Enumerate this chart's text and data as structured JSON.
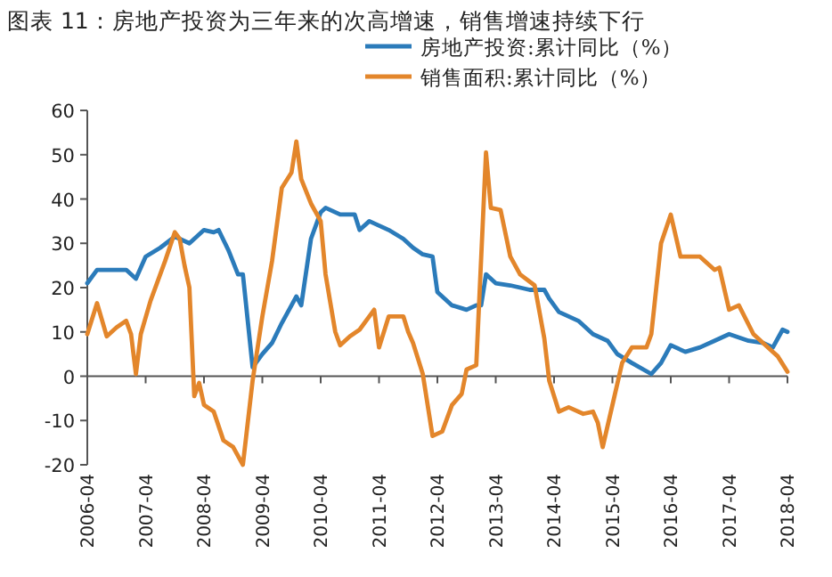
{
  "chart_data": {
    "type": "line",
    "title": "图表 11：房地产投资为三年来的次高增速，销售增速持续下行",
    "xlim": [
      "2006-04",
      "2018-04"
    ],
    "ylim": [
      -20,
      60
    ],
    "yticks": [
      -20,
      -10,
      0,
      10,
      20,
      30,
      40,
      50,
      60
    ],
    "xticks": [
      {
        "value": "2006-04",
        "label": "2006-04"
      },
      {
        "value": "2007-04",
        "label": "2007-04"
      },
      {
        "value": "2008-04",
        "label": "2008-04"
      },
      {
        "value": "2009-04",
        "label": "2009-04"
      },
      {
        "value": "2010-04",
        "label": "2010-04"
      },
      {
        "value": "2011-04",
        "label": "2011-04"
      },
      {
        "value": "2012-04",
        "label": "2012-04"
      },
      {
        "value": "2013-04",
        "label": "2013-04"
      },
      {
        "value": "2014-04",
        "label": "2014-04"
      },
      {
        "value": "2015-04",
        "label": "2015-04"
      },
      {
        "value": "2016-04",
        "label": "2016-04"
      },
      {
        "value": "2017-04",
        "label": "2017-04"
      },
      {
        "value": "2018-04",
        "label": "2018-04"
      }
    ],
    "legend": "top right",
    "marker": "none",
    "line_style": "solid",
    "series": [
      {
        "name": "房地产投资:累计同比（%）",
        "color": "#2b7bba",
        "x": [
          "2006-04",
          "2006-06",
          "2006-09",
          "2006-12",
          "2007-02",
          "2007-04",
          "2007-07",
          "2007-10",
          "2008-01",
          "2008-04",
          "2008-06",
          "2008-07",
          "2008-09",
          "2008-11",
          "2008-12",
          "2009-02",
          "2009-04",
          "2009-06",
          "2009-08",
          "2009-10",
          "2009-11",
          "2009-12",
          "2010-02",
          "2010-04",
          "2010-05",
          "2010-08",
          "2010-11",
          "2010-12",
          "2011-02",
          "2011-04",
          "2011-06",
          "2011-09",
          "2011-11",
          "2012-01",
          "2012-03",
          "2012-04",
          "2012-07",
          "2012-10",
          "2012-12",
          "2013-01",
          "2013-02",
          "2013-04",
          "2013-07",
          "2013-11",
          "2014-02",
          "2014-03",
          "2014-05",
          "2014-09",
          "2014-12",
          "2015-03",
          "2015-05",
          "2015-08",
          "2015-12",
          "2016-02",
          "2016-04",
          "2016-07",
          "2016-10",
          "2017-01",
          "2017-04",
          "2017-08",
          "2017-11",
          "2018-01",
          "2018-03",
          "2018-04"
        ],
        "values": [
          21,
          24,
          24,
          24,
          22,
          27,
          29,
          31.5,
          30,
          33,
          32.5,
          33,
          28.5,
          23,
          23,
          2,
          5,
          7.5,
          12,
          16,
          18,
          16,
          31,
          37,
          38,
          36.5,
          36.5,
          33,
          35,
          34,
          33,
          31,
          29,
          27.5,
          27,
          19,
          16,
          15,
          16,
          16,
          23,
          21,
          20.5,
          19.5,
          19.5,
          17.5,
          14.5,
          12.5,
          9.5,
          8,
          5,
          3,
          0.5,
          3,
          7,
          5.5,
          6.5,
          8,
          9.5,
          8,
          7.5,
          6.5,
          10.5,
          10
        ]
      },
      {
        "name": "销售面积:累计同比（%）",
        "color": "#e3862b",
        "x": [
          "2006-04",
          "2006-06",
          "2006-08",
          "2006-10",
          "2006-12",
          "2007-01",
          "2007-02",
          "2007-03",
          "2007-05",
          "2007-08",
          "2007-10",
          "2007-11",
          "2007-12",
          "2008-01",
          "2008-02",
          "2008-03",
          "2008-04",
          "2008-06",
          "2008-08",
          "2008-10",
          "2008-12",
          "2009-02",
          "2009-04",
          "2009-06",
          "2009-08",
          "2009-10",
          "2009-11",
          "2009-12",
          "2010-02",
          "2010-04",
          "2010-05",
          "2010-07",
          "2010-08",
          "2010-10",
          "2010-12",
          "2011-03",
          "2011-04",
          "2011-06",
          "2011-09",
          "2011-10",
          "2011-11",
          "2012-01",
          "2012-03",
          "2012-05",
          "2012-07",
          "2012-09",
          "2012-10",
          "2012-12",
          "2013-02",
          "2013-03",
          "2013-05",
          "2013-07",
          "2013-09",
          "2013-12",
          "2014-02",
          "2014-03",
          "2014-05",
          "2014-07",
          "2014-10",
          "2014-12",
          "2015-01",
          "2015-02",
          "2015-04",
          "2015-06",
          "2015-08",
          "2015-11",
          "2015-12",
          "2016-02",
          "2016-04",
          "2016-06",
          "2016-10",
          "2017-01",
          "2017-02",
          "2017-04",
          "2017-06",
          "2017-09",
          "2017-12",
          "2018-02",
          "2018-04"
        ],
        "values": [
          9.5,
          16.5,
          9,
          11,
          12.5,
          9.5,
          0.5,
          9.5,
          17,
          26,
          32.5,
          31,
          25,
          20,
          -4.5,
          -1.5,
          -6.5,
          -8,
          -14.5,
          -16,
          -20,
          -1,
          13.5,
          26,
          42.5,
          46,
          53,
          44.5,
          39,
          35,
          23,
          10,
          7,
          9,
          10.5,
          15,
          6.5,
          13.5,
          13.5,
          10,
          7.5,
          0.5,
          -13.5,
          -12.5,
          -6.5,
          -4,
          1.5,
          2.5,
          50.5,
          38,
          37.5,
          27,
          23,
          20.5,
          8.5,
          -1,
          -8,
          -7,
          -8.5,
          -8,
          -10.5,
          -16,
          -6.5,
          3,
          6.5,
          6.5,
          9.5,
          30,
          36.5,
          27,
          27,
          24,
          24.5,
          15,
          16,
          9.5,
          6.5,
          4.5,
          1
        ]
      }
    ]
  }
}
